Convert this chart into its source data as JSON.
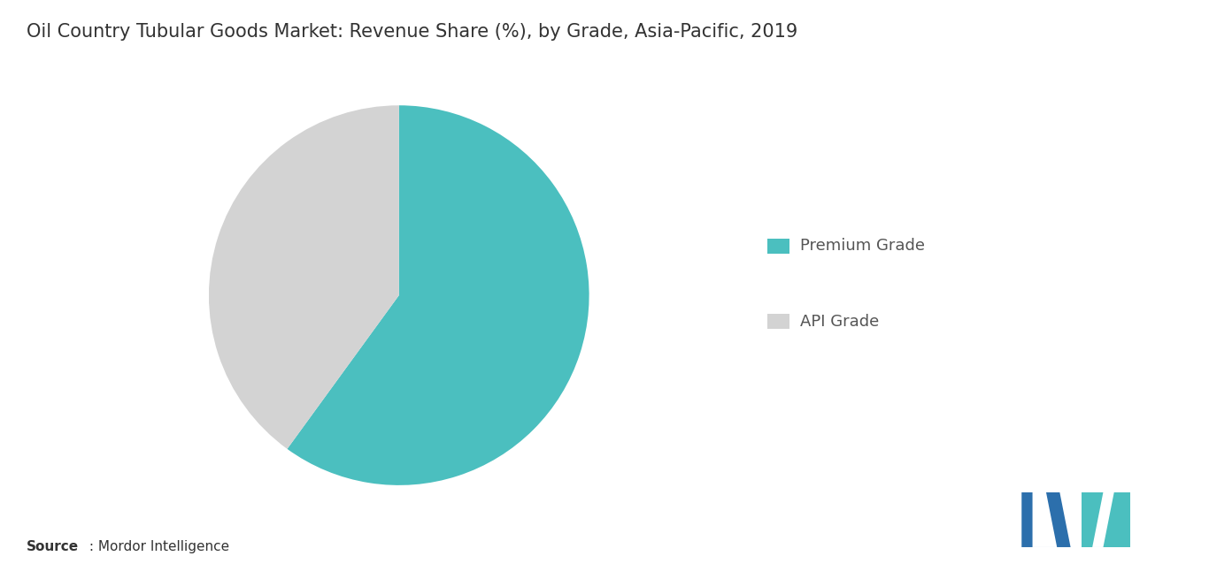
{
  "title": "Oil Country Tubular Goods Market: Revenue Share (%), by Grade, Asia-Pacific, 2019",
  "labels": [
    "Premium Grade",
    "API Grade"
  ],
  "values": [
    60,
    40
  ],
  "colors": [
    "#4BBFBF",
    "#D3D3D3"
  ],
  "startangle": 90,
  "background_color": "#FFFFFF",
  "title_fontsize": 15,
  "legend_fontsize": 13,
  "source_bold": "Source",
  "source_regular": " : Mordor Intelligence",
  "logo_dark": "#2C6FAC",
  "logo_teal": "#4BBFBF"
}
